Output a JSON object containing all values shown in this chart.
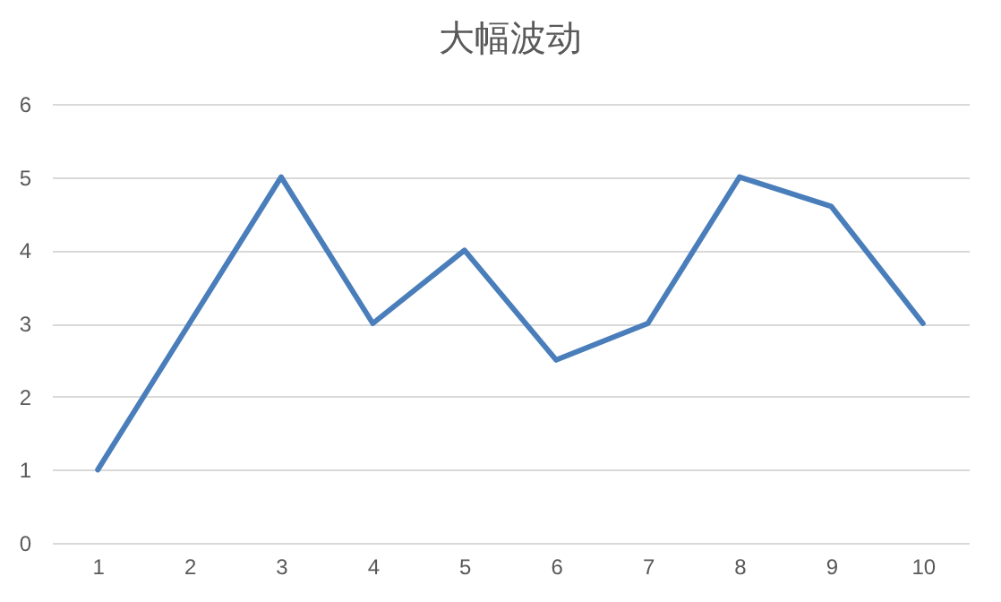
{
  "chart_data": {
    "type": "line",
    "title": "大幅波动",
    "categories": [
      "1",
      "2",
      "3",
      "4",
      "5",
      "6",
      "7",
      "8",
      "9",
      "10"
    ],
    "series": [
      {
        "color": "#4a7ebb",
        "values": [
          1,
          3,
          5,
          3,
          4,
          2.5,
          3,
          5,
          4.6,
          3
        ]
      }
    ],
    "ylim": [
      0,
      6
    ],
    "yticks": [
      0,
      1,
      2,
      3,
      4,
      5,
      6
    ],
    "grid": "y",
    "marker": "none",
    "line_style": "solid"
  }
}
